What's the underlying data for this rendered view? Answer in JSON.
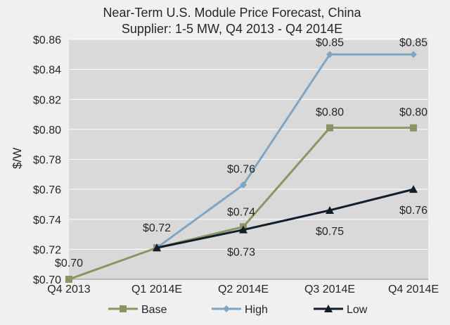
{
  "chart_data": {
    "type": "line",
    "title": "Near-Term U.S. Module Price Forecast, China",
    "subtitle": "Supplier: 1-5 MW, Q4 2013 - Q4 2014E",
    "ylabel": "$/W",
    "xlabel": "",
    "categories": [
      "Q4 2013",
      "Q1 2014E",
      "Q2 2014E",
      "Q3 2014E",
      "Q4 2014E"
    ],
    "ylim": [
      0.7,
      0.86
    ],
    "yticks": [
      "$0.70",
      "$0.72",
      "$0.74",
      "$0.76",
      "$0.78",
      "$0.80",
      "$0.82",
      "$0.84",
      "$0.86"
    ],
    "grid": true,
    "legend_position": "bottom",
    "series": [
      {
        "name": "Base",
        "color": "#8a9563",
        "marker": "square",
        "values": [
          0.7,
          0.721,
          0.735,
          0.801,
          0.801
        ],
        "labels": [
          "$0.70",
          "$0.72",
          "$0.74",
          "$0.80",
          "$0.80"
        ]
      },
      {
        "name": "High",
        "color": "#7ea6c4",
        "marker": "diamond",
        "values": [
          null,
          0.721,
          0.763,
          0.85,
          0.85
        ],
        "labels": [
          "",
          "",
          "$0.76",
          "$0.85",
          "$0.85"
        ]
      },
      {
        "name": "Low",
        "color": "#121c2b",
        "marker": "triangle",
        "values": [
          null,
          0.721,
          0.733,
          0.746,
          0.76
        ],
        "labels": [
          "",
          "",
          "$0.73",
          "$0.75",
          "$0.76"
        ]
      }
    ]
  }
}
